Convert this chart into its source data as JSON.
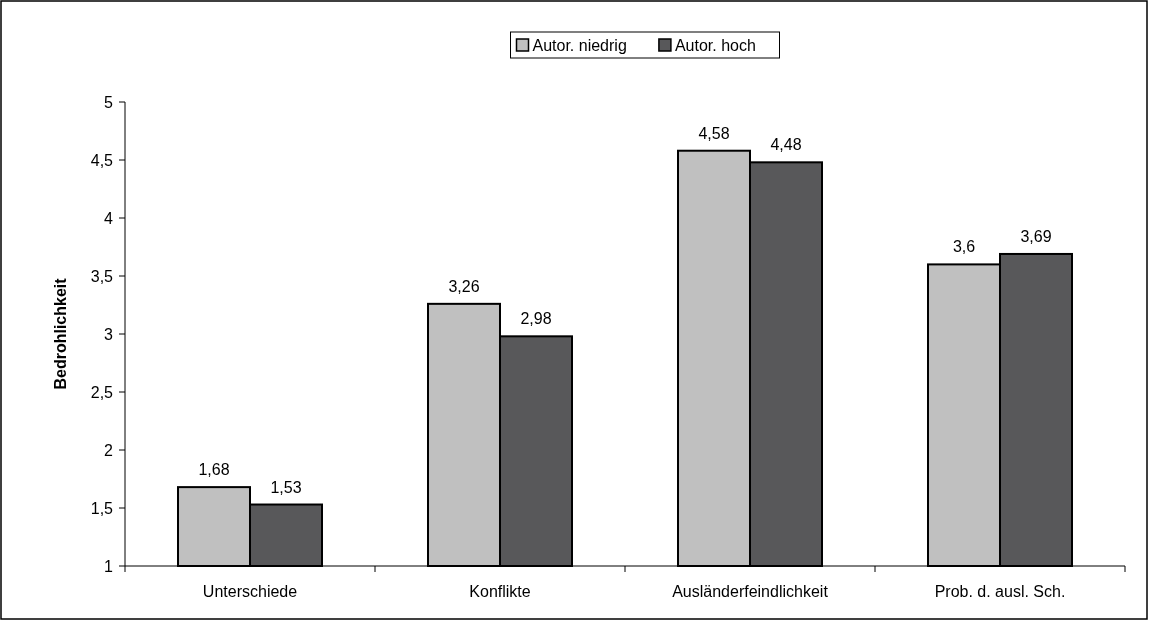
{
  "chart_data": {
    "type": "bar",
    "ylabel": "Bedrohlichkeit",
    "categories": [
      "Unterschiede",
      "Konflikte",
      "Ausländerfeindlichkeit",
      "Prob. d. ausl. Sch."
    ],
    "series": [
      {
        "name": "Autor. niedrig",
        "color": "#c0c0c0",
        "values": [
          1.68,
          3.26,
          4.58,
          3.6
        ],
        "value_labels": [
          "1,68",
          "3,26",
          "4,58",
          "3,6"
        ]
      },
      {
        "name": "Autor. hoch",
        "color": "#58585a",
        "values": [
          1.53,
          2.98,
          4.48,
          3.69
        ],
        "value_labels": [
          "1,53",
          "2,98",
          "4,48",
          "3,69"
        ]
      }
    ],
    "ylim": [
      1,
      5
    ],
    "yticks": [
      1,
      {
        "value": 1.5,
        "label": "1,5"
      },
      2,
      {
        "value": 2.5,
        "label": "2,5"
      },
      3,
      {
        "value": 3.5,
        "label": "3,5"
      },
      4,
      {
        "value": 4.5,
        "label": "4,5"
      },
      5
    ],
    "legend": "top",
    "grid": false
  }
}
